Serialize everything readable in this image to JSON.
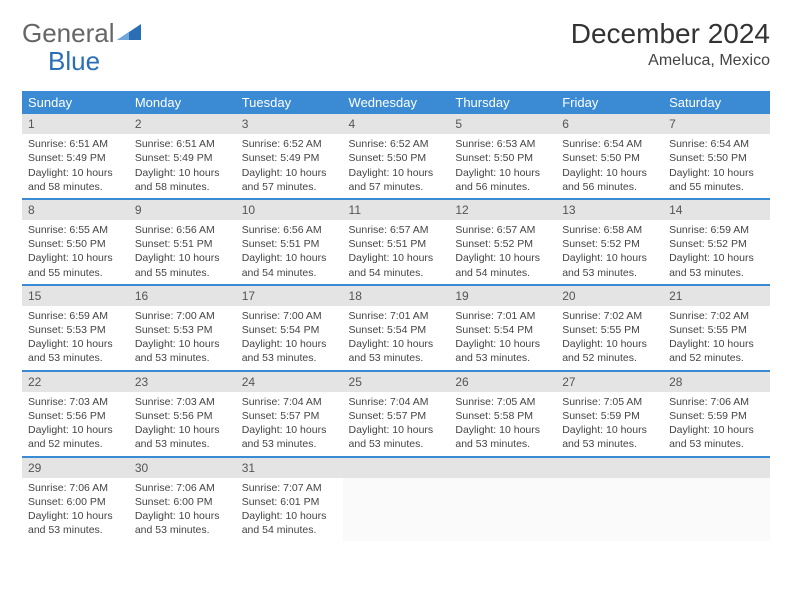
{
  "brand": {
    "part1": "General",
    "part2": "Blue"
  },
  "title": "December 2024",
  "location": "Ameluca, Mexico",
  "colors": {
    "header_bg": "#3b8bd4",
    "header_fg": "#ffffff",
    "daynum_bg": "#e4e4e4",
    "row_divider": "#3b8bd4",
    "brand_accent": "#2a6fb5"
  },
  "weekdays": [
    "Sunday",
    "Monday",
    "Tuesday",
    "Wednesday",
    "Thursday",
    "Friday",
    "Saturday"
  ],
  "weeks": [
    [
      {
        "n": "1",
        "sr": "6:51 AM",
        "ss": "5:49 PM",
        "dh": "10",
        "dm": "58"
      },
      {
        "n": "2",
        "sr": "6:51 AM",
        "ss": "5:49 PM",
        "dh": "10",
        "dm": "58"
      },
      {
        "n": "3",
        "sr": "6:52 AM",
        "ss": "5:49 PM",
        "dh": "10",
        "dm": "57"
      },
      {
        "n": "4",
        "sr": "6:52 AM",
        "ss": "5:50 PM",
        "dh": "10",
        "dm": "57"
      },
      {
        "n": "5",
        "sr": "6:53 AM",
        "ss": "5:50 PM",
        "dh": "10",
        "dm": "56"
      },
      {
        "n": "6",
        "sr": "6:54 AM",
        "ss": "5:50 PM",
        "dh": "10",
        "dm": "56"
      },
      {
        "n": "7",
        "sr": "6:54 AM",
        "ss": "5:50 PM",
        "dh": "10",
        "dm": "55"
      }
    ],
    [
      {
        "n": "8",
        "sr": "6:55 AM",
        "ss": "5:50 PM",
        "dh": "10",
        "dm": "55"
      },
      {
        "n": "9",
        "sr": "6:56 AM",
        "ss": "5:51 PM",
        "dh": "10",
        "dm": "55"
      },
      {
        "n": "10",
        "sr": "6:56 AM",
        "ss": "5:51 PM",
        "dh": "10",
        "dm": "54"
      },
      {
        "n": "11",
        "sr": "6:57 AM",
        "ss": "5:51 PM",
        "dh": "10",
        "dm": "54"
      },
      {
        "n": "12",
        "sr": "6:57 AM",
        "ss": "5:52 PM",
        "dh": "10",
        "dm": "54"
      },
      {
        "n": "13",
        "sr": "6:58 AM",
        "ss": "5:52 PM",
        "dh": "10",
        "dm": "53"
      },
      {
        "n": "14",
        "sr": "6:59 AM",
        "ss": "5:52 PM",
        "dh": "10",
        "dm": "53"
      }
    ],
    [
      {
        "n": "15",
        "sr": "6:59 AM",
        "ss": "5:53 PM",
        "dh": "10",
        "dm": "53"
      },
      {
        "n": "16",
        "sr": "7:00 AM",
        "ss": "5:53 PM",
        "dh": "10",
        "dm": "53"
      },
      {
        "n": "17",
        "sr": "7:00 AM",
        "ss": "5:54 PM",
        "dh": "10",
        "dm": "53"
      },
      {
        "n": "18",
        "sr": "7:01 AM",
        "ss": "5:54 PM",
        "dh": "10",
        "dm": "53"
      },
      {
        "n": "19",
        "sr": "7:01 AM",
        "ss": "5:54 PM",
        "dh": "10",
        "dm": "53"
      },
      {
        "n": "20",
        "sr": "7:02 AM",
        "ss": "5:55 PM",
        "dh": "10",
        "dm": "52"
      },
      {
        "n": "21",
        "sr": "7:02 AM",
        "ss": "5:55 PM",
        "dh": "10",
        "dm": "52"
      }
    ],
    [
      {
        "n": "22",
        "sr": "7:03 AM",
        "ss": "5:56 PM",
        "dh": "10",
        "dm": "52"
      },
      {
        "n": "23",
        "sr": "7:03 AM",
        "ss": "5:56 PM",
        "dh": "10",
        "dm": "53"
      },
      {
        "n": "24",
        "sr": "7:04 AM",
        "ss": "5:57 PM",
        "dh": "10",
        "dm": "53"
      },
      {
        "n": "25",
        "sr": "7:04 AM",
        "ss": "5:57 PM",
        "dh": "10",
        "dm": "53"
      },
      {
        "n": "26",
        "sr": "7:05 AM",
        "ss": "5:58 PM",
        "dh": "10",
        "dm": "53"
      },
      {
        "n": "27",
        "sr": "7:05 AM",
        "ss": "5:59 PM",
        "dh": "10",
        "dm": "53"
      },
      {
        "n": "28",
        "sr": "7:06 AM",
        "ss": "5:59 PM",
        "dh": "10",
        "dm": "53"
      }
    ],
    [
      {
        "n": "29",
        "sr": "7:06 AM",
        "ss": "6:00 PM",
        "dh": "10",
        "dm": "53"
      },
      {
        "n": "30",
        "sr": "7:06 AM",
        "ss": "6:00 PM",
        "dh": "10",
        "dm": "53"
      },
      {
        "n": "31",
        "sr": "7:07 AM",
        "ss": "6:01 PM",
        "dh": "10",
        "dm": "54"
      },
      null,
      null,
      null,
      null
    ]
  ]
}
